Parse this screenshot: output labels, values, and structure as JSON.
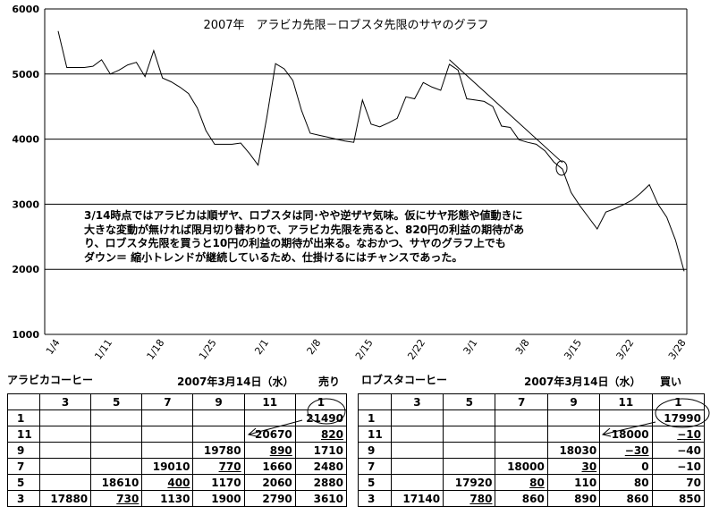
{
  "chart_data": {
    "type": "line",
    "title": "2007年　アラビカ先限－ロブスタ先限のサヤのグラフ",
    "xlabel": "",
    "ylabel": "",
    "ylim": [
      1000,
      6000
    ],
    "yticks": [
      "1000",
      "2000",
      "3000",
      "4000",
      "5000",
      "6000"
    ],
    "xticks": [
      "1/4",
      "1/11",
      "1/18",
      "1/25",
      "2/1",
      "2/8",
      "2/15",
      "2/22",
      "3/1",
      "3/8",
      "3/15",
      "3/22",
      "3/28"
    ],
    "grid": "horizontal",
    "series": [
      {
        "values": [
          [
            0,
            5660
          ],
          [
            1,
            5100
          ],
          [
            2,
            5100
          ],
          [
            3,
            5100
          ],
          [
            4,
            5120
          ],
          [
            5,
            5220
          ],
          [
            6,
            5000
          ],
          [
            7,
            5060
          ],
          [
            8,
            5140
          ],
          [
            9,
            5180
          ],
          [
            10,
            4960
          ],
          [
            11,
            5360
          ],
          [
            12,
            4940
          ],
          [
            13,
            4880
          ],
          [
            14,
            4800
          ],
          [
            15,
            4700
          ],
          [
            16,
            4480
          ],
          [
            17,
            4130
          ],
          [
            18,
            3920
          ],
          [
            19,
            3920
          ],
          [
            20,
            3920
          ],
          [
            21,
            3940
          ],
          [
            22,
            3780
          ],
          [
            23,
            3600
          ],
          [
            24,
            4330
          ],
          [
            25,
            5160
          ],
          [
            26,
            5080
          ],
          [
            27,
            4900
          ],
          [
            28,
            4440
          ],
          [
            29,
            4090
          ],
          [
            30,
            4060
          ],
          [
            31,
            4030
          ],
          [
            32,
            4000
          ],
          [
            33,
            3970
          ],
          [
            34,
            3950
          ],
          [
            35,
            4600
          ],
          [
            36,
            4230
          ],
          [
            37,
            4190
          ],
          [
            38,
            4250
          ],
          [
            39,
            4320
          ],
          [
            40,
            4650
          ],
          [
            41,
            4620
          ],
          [
            42,
            4870
          ],
          [
            43,
            4800
          ],
          [
            44,
            4750
          ],
          [
            45,
            5150
          ],
          [
            46,
            5060
          ],
          [
            47,
            4620
          ],
          [
            48,
            4600
          ],
          [
            49,
            4580
          ],
          [
            50,
            4500
          ],
          [
            51,
            4200
          ],
          [
            52,
            4180
          ],
          [
            53,
            3990
          ],
          [
            54,
            3950
          ],
          [
            55,
            3920
          ],
          [
            56,
            3820
          ],
          [
            57,
            3650
          ],
          [
            58,
            3540
          ],
          [
            59,
            3180
          ],
          [
            60,
            2980
          ],
          [
            61,
            2800
          ],
          [
            62,
            2620
          ],
          [
            63,
            2880
          ],
          [
            64,
            2930
          ],
          [
            65,
            2990
          ],
          [
            66,
            3060
          ],
          [
            67,
            3170
          ],
          [
            68,
            3300
          ],
          [
            69,
            3000
          ],
          [
            70,
            2800
          ],
          [
            71,
            2450
          ],
          [
            72,
            1970
          ]
        ]
      }
    ],
    "trend_lines": [
      [
        [
          45,
          5220
        ],
        [
          58,
          3640
        ]
      ]
    ]
  },
  "annotation": "3/14時点ではアラビカは順ザヤ、ロブスタは同･やや逆ザヤ気味。仮にサヤ形態や値動きに\n大きな変動が無ければ限月切り替わりで、アラビカ先限を売ると、820円の利益の期待があ\nり、ロブスタ先限を買うと10円の利益の期待が出来る。なおかつ、サヤのグラフ上でも\nダウン＝ 縮小トレンドが継続しているため、仕掛けるにはチャンスであった。",
  "arabica": {
    "name": "アラビカコーヒー",
    "date": "2007年3月14日（水）",
    "action": "売り",
    "header": [
      "",
      "3",
      "5",
      "7",
      "9",
      "11",
      "1"
    ],
    "rows": [
      [
        "1",
        "",
        "",
        "",
        "",
        "",
        "21490"
      ],
      [
        "11",
        "",
        "",
        "",
        "",
        "20670",
        "820"
      ],
      [
        "9",
        "",
        "",
        "",
        "19780",
        "890",
        "1710"
      ],
      [
        "7",
        "",
        "",
        "19010",
        "770",
        "1660",
        "2480"
      ],
      [
        "5",
        "",
        "18610",
        "400",
        "1170",
        "2060",
        "2880"
      ],
      [
        "3",
        "17880",
        "730",
        "1130",
        "1900",
        "2790",
        "3610"
      ]
    ]
  },
  "robusta": {
    "name": "ロブスタコーヒー",
    "date": "2007年3月14日（水）",
    "action": "買い",
    "header": [
      "",
      "3",
      "5",
      "7",
      "9",
      "11",
      "1"
    ],
    "rows": [
      [
        "1",
        "",
        "",
        "",
        "",
        "",
        "17990"
      ],
      [
        "11",
        "",
        "",
        "",
        "",
        "18000",
        "−10"
      ],
      [
        "9",
        "",
        "",
        "",
        "18030",
        "−30",
        "−40"
      ],
      [
        "7",
        "",
        "",
        "18000",
        "30",
        "0",
        "−10"
      ],
      [
        "5",
        "",
        "17920",
        "80",
        "110",
        "80",
        "70"
      ],
      [
        "3",
        "17140",
        "780",
        "860",
        "890",
        "860",
        "850"
      ]
    ]
  }
}
